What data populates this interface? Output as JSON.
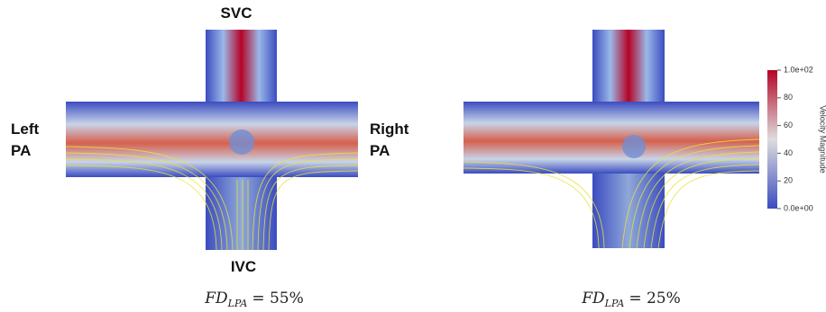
{
  "labels": {
    "top": "SVC",
    "left": [
      "Left",
      "PA"
    ],
    "right": [
      "Right",
      "PA"
    ],
    "bottom": "IVC"
  },
  "captions": [
    {
      "main": "FD",
      "sub": "LPA",
      "rest": "= 55%"
    },
    {
      "main": "FD",
      "sub": "LPA",
      "rest": "= 25%"
    }
  ],
  "colorbar": {
    "title": "Velocity Magnitude",
    "range": [
      0,
      100
    ],
    "ticks": [
      {
        "value": 100,
        "label": "1.0e+02"
      },
      80,
      60,
      40,
      20,
      {
        "value": 0,
        "label": "0.0e+00"
      }
    ]
  }
}
